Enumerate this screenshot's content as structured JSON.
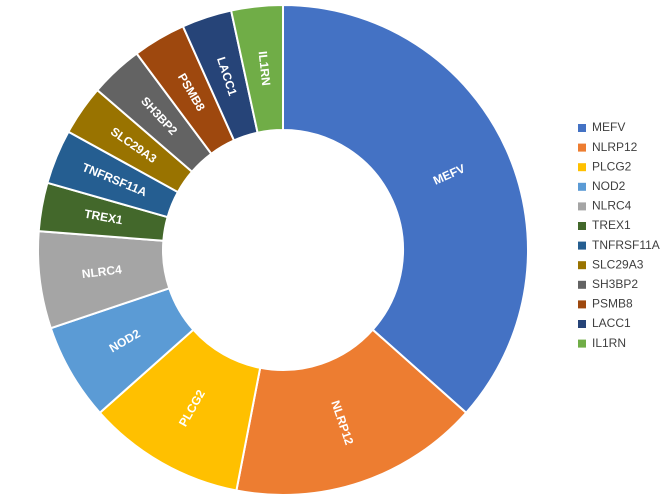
{
  "chart_data": {
    "type": "donut",
    "categories": [
      "MEFV",
      "NLRP12",
      "PLCG2",
      "NOD2",
      "NLRC4",
      "TREX1",
      "TNFRSF11A",
      "SLC29A3",
      "SH3BP2",
      "PSMB8",
      "LACC1",
      "IL1RN"
    ],
    "values": [
      36.6,
      16.5,
      10.4,
      6.4,
      6.4,
      3.2,
      3.6,
      3.3,
      3.5,
      3.5,
      3.3,
      3.4
    ],
    "colors": [
      "#4472c4",
      "#ed7d31",
      "#ffc000",
      "#5b9bd5",
      "#a5a5a5",
      "#43682b",
      "#255e91",
      "#997300",
      "#636363",
      "#9e480e",
      "#264478",
      "#70ad47"
    ],
    "legend": "right"
  }
}
